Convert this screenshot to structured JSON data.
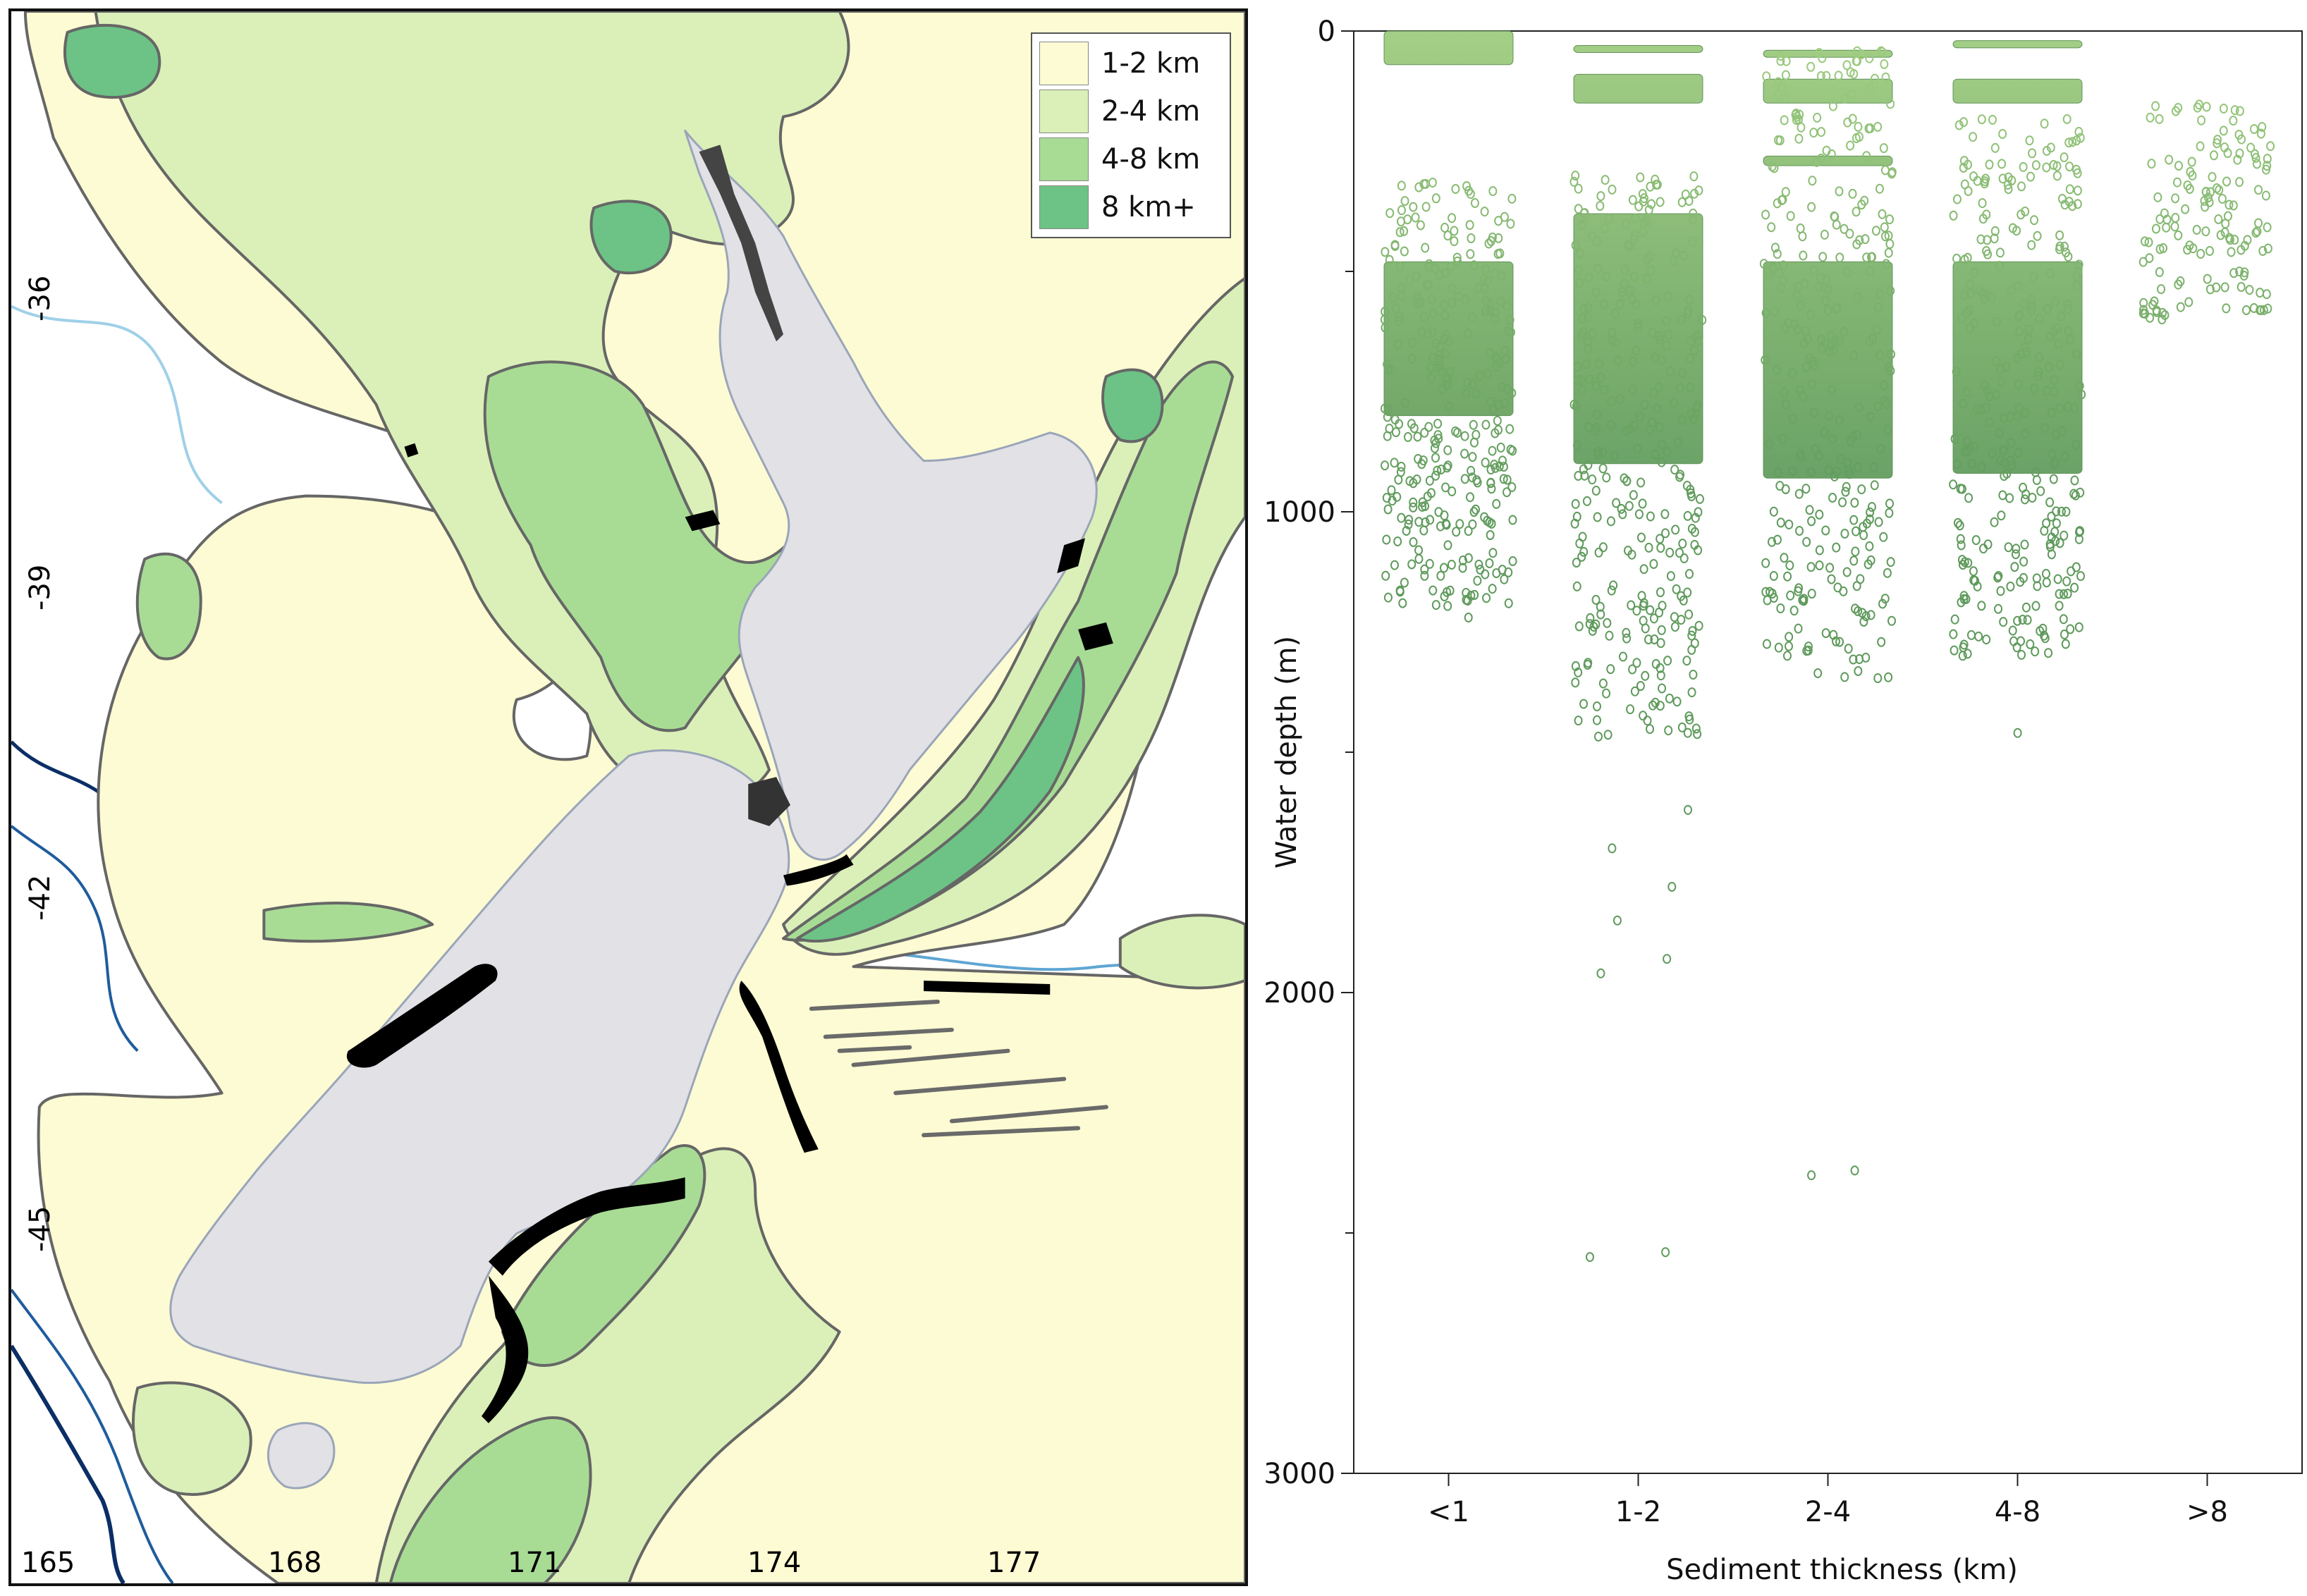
{
  "map": {
    "legend": [
      {
        "label": "1-2 km",
        "color": "#fdfbd3"
      },
      {
        "label": "2-4 km",
        "color": "#daf0b8"
      },
      {
        "label": "4-8 km",
        "color": "#a8dc95"
      },
      {
        "label": "8 km+",
        "color": "#6cc385"
      }
    ],
    "lat_labels": [
      "-36",
      "-39",
      "-42",
      "-45"
    ],
    "lon_labels": [
      "165",
      "168",
      "171",
      "174",
      "177"
    ],
    "land_color": "#e1e1e6",
    "contour_colors": [
      "#9fd0e8",
      "#5ea6d3",
      "#1f5c9c",
      "#0b2e66"
    ],
    "point_color": "#000000"
  },
  "chart_data": {
    "type": "scatter",
    "title": "",
    "xlabel": "Sediment thickness (km)",
    "ylabel": "Water depth (m)",
    "categories": [
      "<1",
      "1-2",
      "2-4",
      "4-8",
      ">8"
    ],
    "ylim": [
      0,
      3000
    ],
    "y_inverted": true,
    "yticks": [
      "0",
      "1000",
      "2000",
      "3000"
    ],
    "colors": {
      "light": "#9fcd80",
      "dark": "#5f9a5c",
      "outline": "#5a8d52"
    },
    "groups": [
      {
        "category": "<1",
        "dense_bands": [
          [
            0,
            70
          ],
          [
            480,
            800
          ]
        ],
        "sparse_range": [
          310,
          1200
        ],
        "outliers": [
          1080,
          1110,
          1160,
          1190,
          1220
        ]
      },
      {
        "category": "1-2",
        "dense_bands": [
          [
            30,
            40
          ],
          [
            90,
            150
          ],
          [
            380,
            900
          ]
        ],
        "sparse_range": [
          300,
          1500
        ],
        "outliers": [
          1620,
          1700,
          1780,
          1850,
          1930,
          1960,
          2550,
          2540
        ]
      },
      {
        "category": "2-4",
        "dense_bands": [
          [
            40,
            50
          ],
          [
            100,
            150
          ],
          [
            260,
            280
          ],
          [
            480,
            930
          ]
        ],
        "sparse_range": [
          40,
          1350
        ],
        "outliers": [
          2370,
          2380
        ]
      },
      {
        "category": "4-8",
        "dense_bands": [
          [
            20,
            35
          ],
          [
            100,
            150
          ],
          [
            480,
            920
          ]
        ],
        "sparse_range": [
          180,
          1300
        ],
        "outliers": [
          1460
        ]
      },
      {
        "category": ">8",
        "dense_bands": [],
        "sparse_range": [
          150,
          600
        ],
        "outliers": []
      }
    ]
  }
}
